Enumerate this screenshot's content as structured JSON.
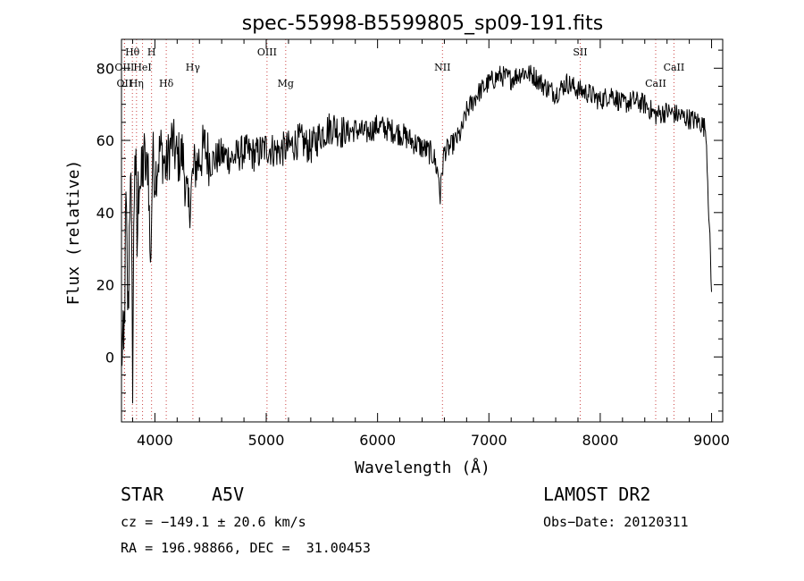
{
  "chart_data": {
    "type": "line",
    "title": "spec-55998-B5599805_sp09-191.fits",
    "xlabel": "Wavelength (Å)",
    "ylabel": "Flux (relative)",
    "xlim": [
      3700,
      9100
    ],
    "ylim": [
      -18,
      88
    ],
    "x_ticks": [
      4000,
      5000,
      6000,
      7000,
      8000,
      9000
    ],
    "y_ticks": [
      0,
      20,
      40,
      60,
      80
    ],
    "grid": false,
    "series": [
      {
        "x": [
          3700,
          3720,
          3740,
          3760,
          3780,
          3800,
          3820,
          3840,
          3860,
          3880,
          3900,
          3920,
          3940,
          3960,
          3980,
          4000,
          4050,
          4100,
          4150,
          4200,
          4250,
          4300,
          4350,
          4400,
          4450,
          4500,
          4600,
          4700,
          4800,
          4900,
          5000,
          5100,
          5200,
          5300,
          5400,
          5500,
          5600,
          5700,
          5800,
          5900,
          6000,
          6100,
          6200,
          6300,
          6400,
          6500,
          6550,
          6563,
          6580,
          6600,
          6650,
          6700,
          6750,
          6800,
          6900,
          7000,
          7100,
          7200,
          7300,
          7400,
          7500,
          7600,
          7700,
          7800,
          7900,
          8000,
          8100,
          8200,
          8300,
          8400,
          8500,
          8600,
          8700,
          8800,
          8900,
          8950,
          9000
        ],
        "y": [
          5,
          -3,
          40,
          10,
          58,
          -2,
          62,
          30,
          55,
          45,
          58,
          50,
          55,
          23,
          57,
          50,
          58,
          52,
          60,
          55,
          56,
          40,
          52,
          55,
          58,
          54,
          56,
          55,
          57,
          56,
          58,
          57,
          58,
          60,
          58,
          62,
          64,
          62,
          63,
          62,
          64,
          63,
          62,
          60,
          58,
          56,
          50,
          44,
          52,
          57,
          58,
          60,
          62,
          68,
          73,
          76,
          78,
          77,
          79,
          78,
          75,
          73,
          76,
          74,
          73,
          71,
          73,
          70,
          71,
          70,
          67,
          68,
          67,
          66,
          65,
          63,
          18
        ]
      }
    ],
    "line_markers": [
      {
        "label": "Hθ",
        "x": 3798,
        "tier": 1
      },
      {
        "label": "H",
        "x": 3970,
        "tier": 1
      },
      {
        "label": "OIII",
        "x": 3727,
        "tier": 2
      },
      {
        "label": "HeI",
        "x": 3889,
        "tier": 2
      },
      {
        "label": "Hγ",
        "x": 4341,
        "tier": 2
      },
      {
        "label": "OII",
        "x": 3727,
        "tier": 3
      },
      {
        "label": "Hη",
        "x": 3835,
        "tier": 3
      },
      {
        "label": "Hδ",
        "x": 4102,
        "tier": 3
      },
      {
        "label": "OIII",
        "x": 5007,
        "tier": 1
      },
      {
        "label": "Mg",
        "x": 5175,
        "tier": 3
      },
      {
        "label": "NII",
        "x": 6583,
        "tier": 2
      },
      {
        "label": "SII",
        "x": 7820,
        "tier": 1
      },
      {
        "label": "CaII",
        "x": 8662,
        "tier": 2
      },
      {
        "label": "CaII",
        "x": 8498,
        "tier": 3
      }
    ]
  },
  "info": {
    "object_class": "STAR",
    "subclass": "A5V",
    "survey": "LAMOST DR2",
    "cz": "cz = −149.1 ± 20.6 km/s",
    "obs_date": "Obs−Date: 20120311",
    "coords": "RA = 196.98866, DEC =  31.00453"
  }
}
